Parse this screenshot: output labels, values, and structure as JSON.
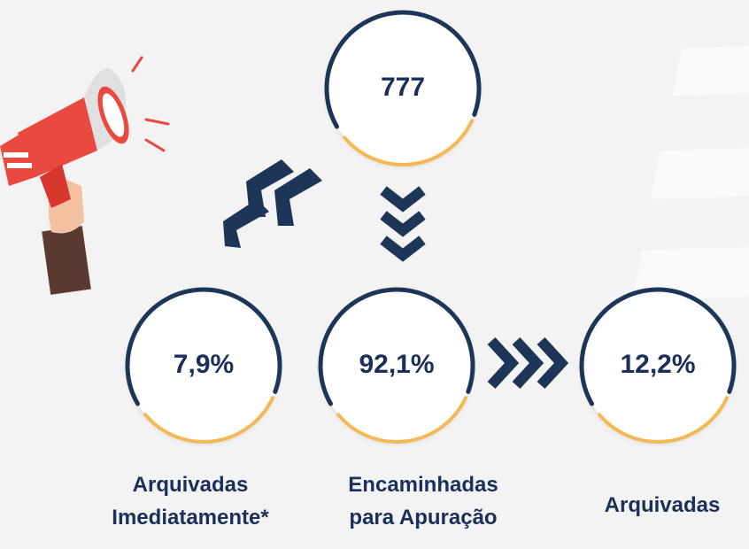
{
  "nodes": [
    {
      "value": "777"
    },
    {
      "value": "7,9%",
      "label": [
        "Arquivadas",
        "Imediatamente*"
      ]
    },
    {
      "value": "92,1%",
      "label": [
        "Encaminhadas",
        "para Apuração"
      ]
    },
    {
      "value": "12,2%",
      "label": [
        "Arquivadas"
      ]
    }
  ]
}
